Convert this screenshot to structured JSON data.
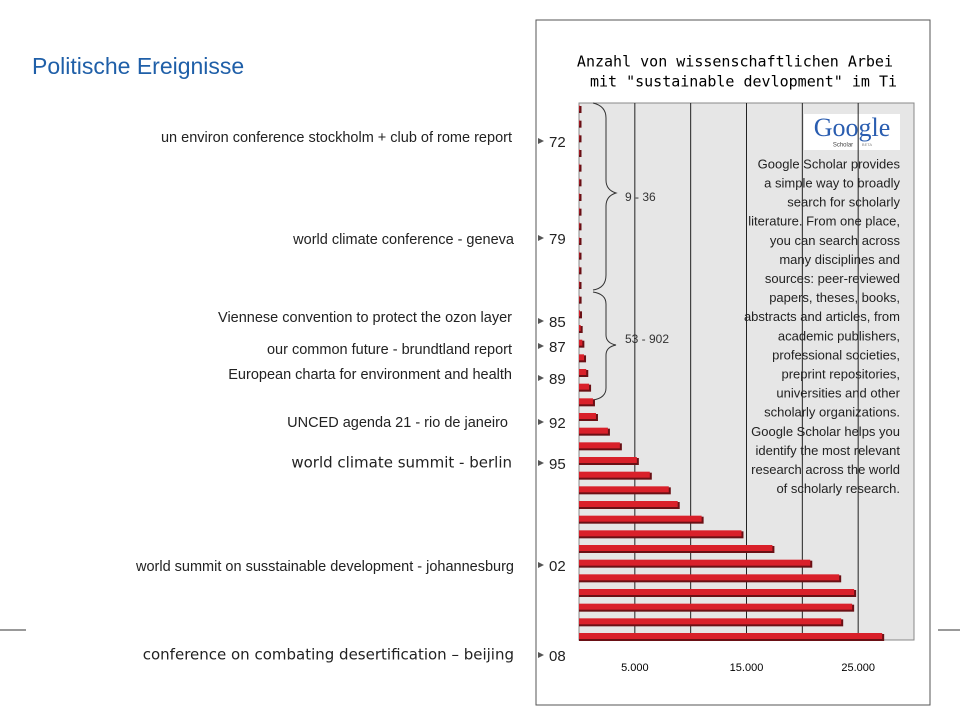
{
  "title": "Politische Ereignisse",
  "events": [
    {
      "label": "un environ conference stockholm + club of rome report",
      "year": "72"
    },
    {
      "label": "world climate conference - geneva",
      "year": "79"
    },
    {
      "label": "Viennese convention to protect the ozon layer",
      "year": "85"
    },
    {
      "label": "our common future - brundtland report",
      "year": "87"
    },
    {
      "label": "European charta for environment and health",
      "year": "89"
    },
    {
      "label": "UNCED agenda 21 - rio de janeiro",
      "year": "92"
    },
    {
      "label": "world climate summit - berlin",
      "year": "95"
    },
    {
      "label": "world summit on susstainable development - johannesburg",
      "year": "02"
    },
    {
      "label": "conference on combating desertification – beijing",
      "year": "08"
    }
  ],
  "chart_data": {
    "type": "bar",
    "orientation": "horizontal",
    "title": [
      "Anzahl von wissenschaftlichen Arbei",
      "mit \"sustainable devlopment\" im Ti"
    ],
    "values": [
      9,
      10,
      11,
      12,
      13,
      14,
      15,
      17,
      19,
      22,
      26,
      30,
      36,
      53,
      90,
      150,
      300,
      450,
      650,
      902,
      1250,
      1520,
      2590,
      3660,
      5180,
      6340,
      8040,
      8840,
      10980,
      14550,
      17320,
      20710,
      23300,
      24640,
      24460,
      23480,
      27150
    ],
    "color": "#d9202a",
    "xlim": [
      0,
      30000
    ],
    "xticks": [
      {
        "value": 5000,
        "label": "5.000"
      },
      {
        "value": 15000,
        "label": "15.000"
      },
      {
        "value": 25000,
        "label": "25.000"
      }
    ],
    "minor_xticks": [
      10000,
      20000
    ],
    "grid": true,
    "annotations": [
      "9 - 36",
      "53 - 902"
    ],
    "logo": {
      "text": "Google",
      "subtext": "Scholar",
      "badge": "BETA"
    },
    "description": [
      "Google Scholar provides",
      "a simple way to broadly",
      "search for scholarly",
      "literature. From one place,",
      "you can search across",
      "many disciplines and",
      "sources: peer-reviewed",
      "papers, theses, books,",
      "abstracts and articles, from",
      "academic publishers,",
      "professional societies,",
      "preprint repositories,",
      "universities and other",
      "scholarly organizations.",
      "Google Scholar helps you",
      "identify the most relevant",
      "research across the world",
      "of scholarly research."
    ]
  }
}
